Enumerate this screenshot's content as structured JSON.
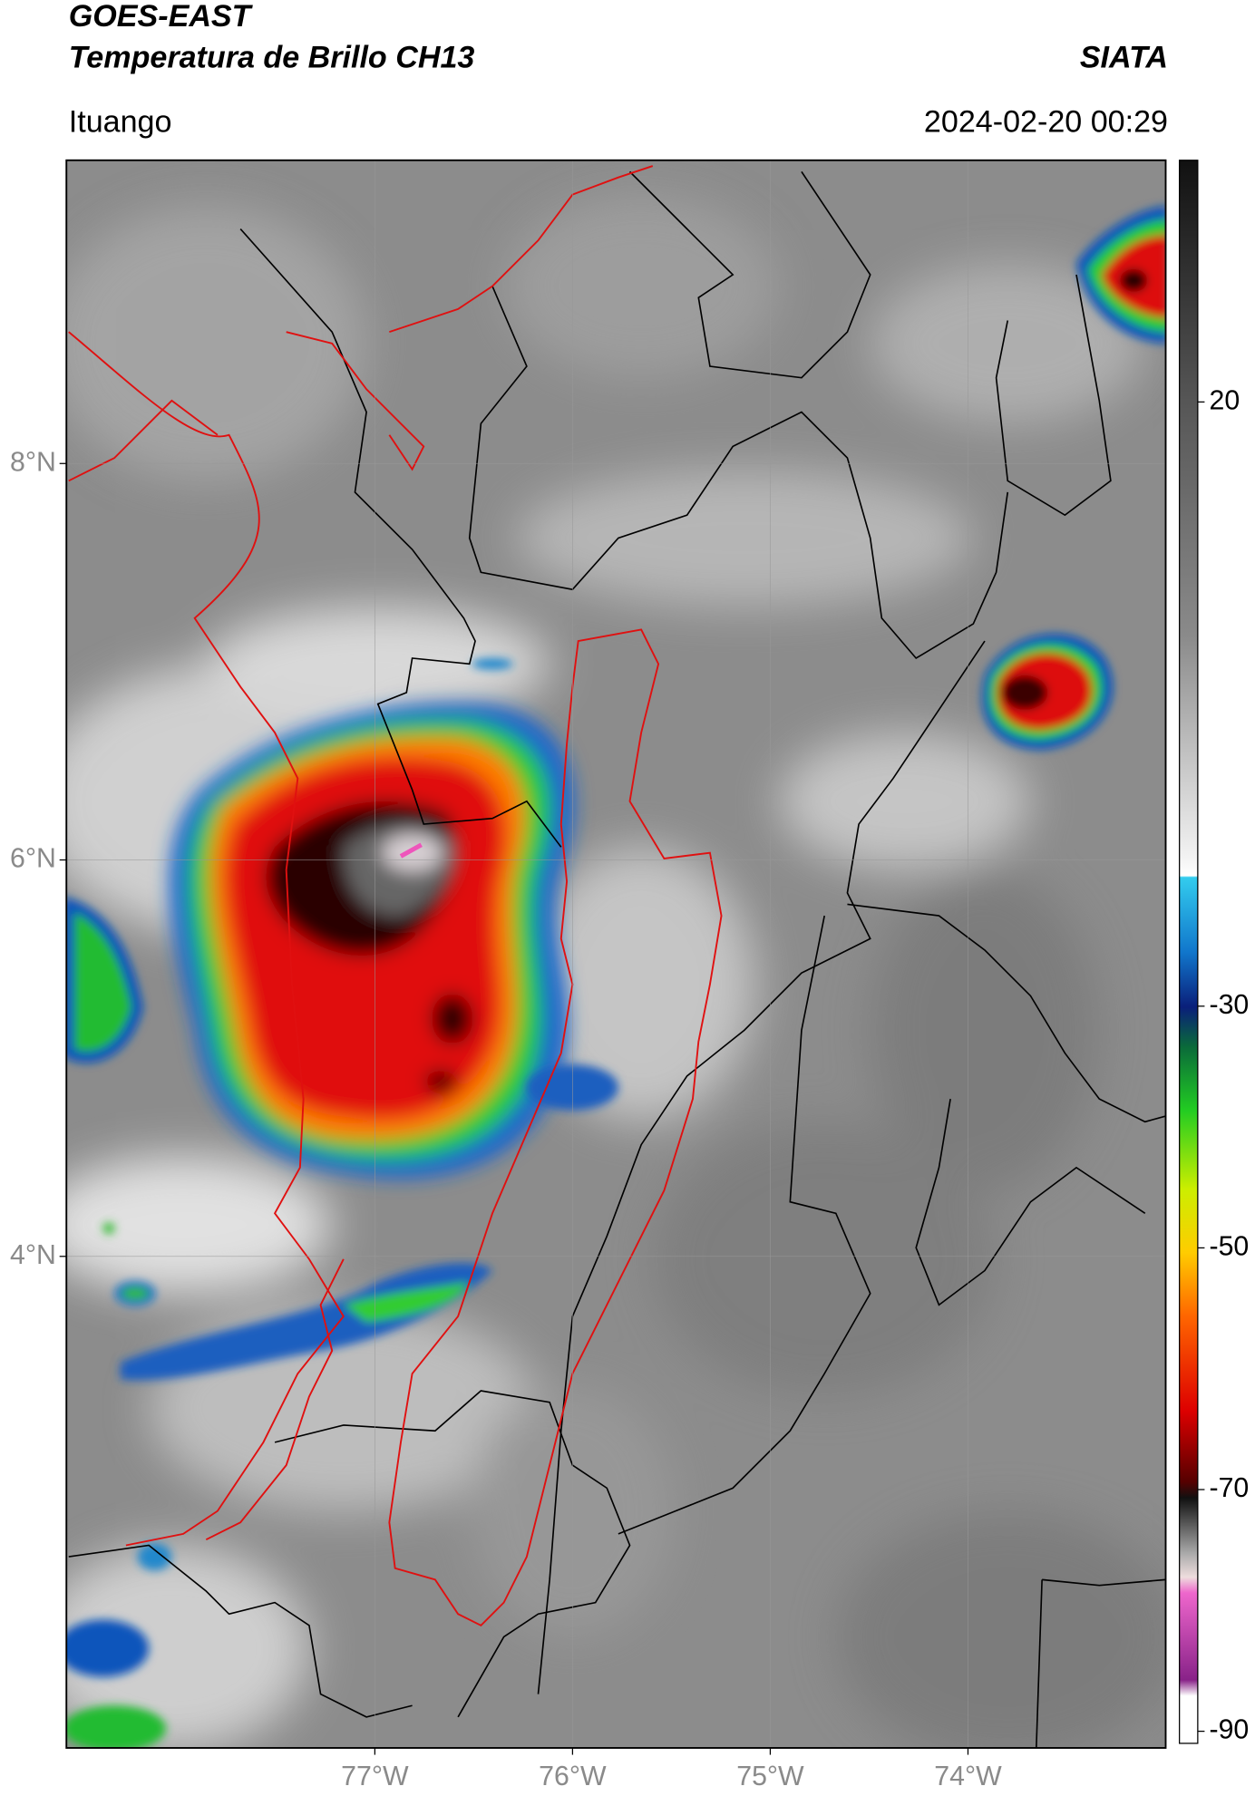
{
  "header": {
    "title": "GOES-EAST",
    "subtitle": "Temperatura de Brillo CH13",
    "source": "SIATA",
    "location": "Ituango",
    "datetime": "2024-02-20 00:29"
  },
  "map": {
    "lat_range": [
      1.52,
      9.53
    ],
    "lon_range": [
      -78.56,
      -73.0
    ],
    "grid": true,
    "lat_ticks": [
      {
        "value": 8,
        "label": "8°N"
      },
      {
        "value": 6,
        "label": "6°N"
      },
      {
        "value": 4,
        "label": "4°N"
      }
    ],
    "lon_ticks": [
      {
        "value": -77,
        "label": "77°W"
      },
      {
        "value": -76,
        "label": "76°W"
      },
      {
        "value": -75,
        "label": "75°W"
      },
      {
        "value": -74,
        "label": "74°W"
      }
    ]
  },
  "colorbar": {
    "lim": [
      -91,
      40
    ],
    "ticks": [
      20,
      -30,
      -50,
      -70,
      -90
    ]
  }
}
